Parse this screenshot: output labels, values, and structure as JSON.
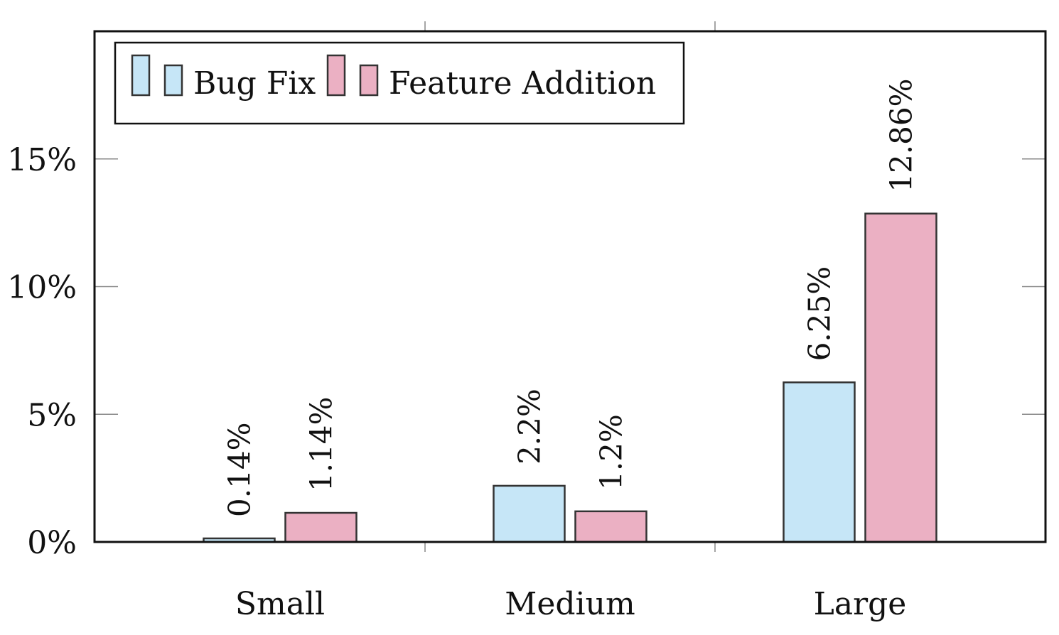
{
  "chart_data": {
    "type": "bar",
    "categories": [
      "Small",
      "Medium",
      "Large"
    ],
    "series": [
      {
        "name": "Bug Fix",
        "values": [
          0.14,
          2.2,
          6.25
        ],
        "labels": [
          "0.14%",
          "2.2%",
          "6.25%"
        ],
        "color": "#c6e6f7"
      },
      {
        "name": "Feature Addition",
        "values": [
          1.14,
          1.2,
          12.86
        ],
        "labels": [
          "1.14%",
          "1.2%",
          "12.86%"
        ],
        "color": "#ebb0c3"
      }
    ],
    "y_ticks": [
      0,
      5,
      10,
      15
    ],
    "y_tick_labels": [
      "0%",
      "5%",
      "10%",
      "15%"
    ],
    "ylim": [
      0,
      20
    ],
    "xlabel": "",
    "ylabel": "",
    "title": "",
    "legend_position": "top-left",
    "grid": false,
    "colors": {
      "stroke": "#333333",
      "axis": "#111111"
    }
  }
}
